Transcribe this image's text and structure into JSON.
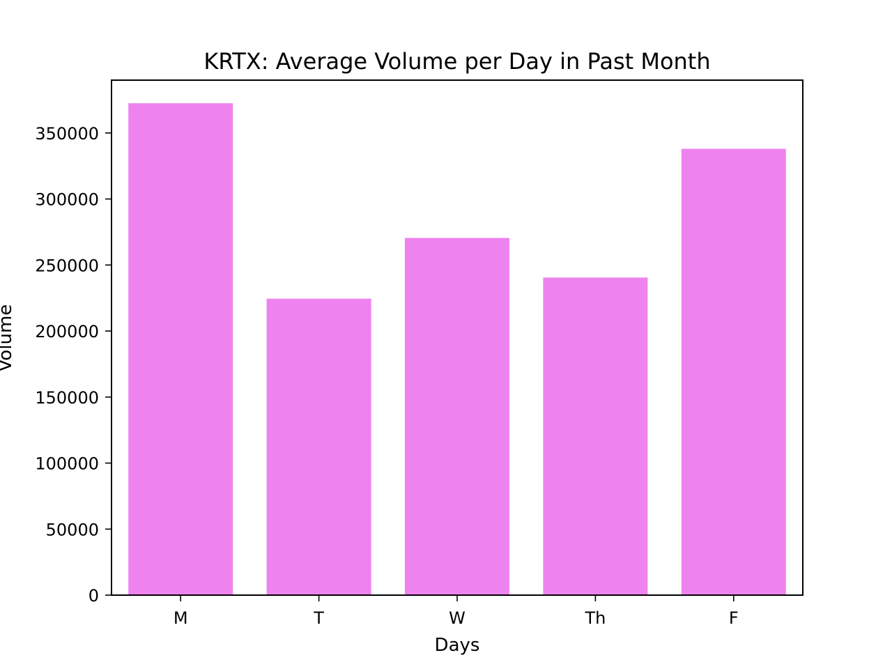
{
  "chart_data": {
    "type": "bar",
    "title": "KRTX: Average Volume per Day in Past Month",
    "xlabel": "Days",
    "ylabel": "Volume",
    "categories": [
      "M",
      "T",
      "W",
      "Th",
      "F"
    ],
    "values": [
      372500,
      224500,
      270500,
      240500,
      338000
    ],
    "ylim": [
      0,
      390000
    ],
    "yticks": [
      0,
      50000,
      100000,
      150000,
      200000,
      250000,
      300000,
      350000
    ],
    "bar_color": "#ee82ee",
    "grid": false,
    "legend": "none"
  }
}
